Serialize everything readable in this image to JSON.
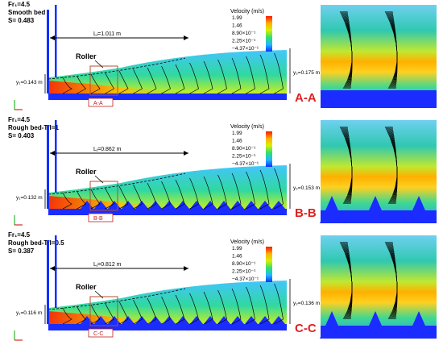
{
  "legend": {
    "title": "Velocity (m/s)",
    "ticks": [
      "1.99",
      "1.46",
      "8.90×10⁻¹",
      "2.25×10⁻¹",
      "−4.37×10⁻¹"
    ],
    "colors": [
      "#ff1500",
      "#ffb000",
      "#d8f000",
      "#30e070",
      "#20b8ff",
      "#1030ff"
    ]
  },
  "panels": [
    {
      "id": "A",
      "header": [
        "Fr₁=4.5",
        "Smooth bed",
        "S= 0.483"
      ],
      "lj": "Lⱼ=1.011 m",
      "y1": "y₁=0.143 m",
      "y2": "y₂=0.175 m",
      "roller": "Roller",
      "section_small": "A-A",
      "section_big": "A-A",
      "bed": "smooth"
    },
    {
      "id": "B",
      "header": [
        "Fr₁=4.5",
        "Rough bed-T/I=1",
        "S= 0.403"
      ],
      "lj": "Lⱼ=0.862 m",
      "y1": "y₁=0.132 m",
      "y2": "y₂=0.153 m",
      "roller": "Roller",
      "section_small": "B-B",
      "section_big": "B-B",
      "bed": "rough"
    },
    {
      "id": "C",
      "header": [
        "Fr₁=4.5",
        "Rough bed-T/I=0.5",
        "S= 0.387"
      ],
      "lj": "Lⱼ=0.812 m",
      "y1": "y₁=0.116 m",
      "y2": "y₂=0.136 m",
      "roller": "Roller",
      "section_small": "C-C",
      "section_big": "C-C",
      "bed": "rough"
    }
  ]
}
